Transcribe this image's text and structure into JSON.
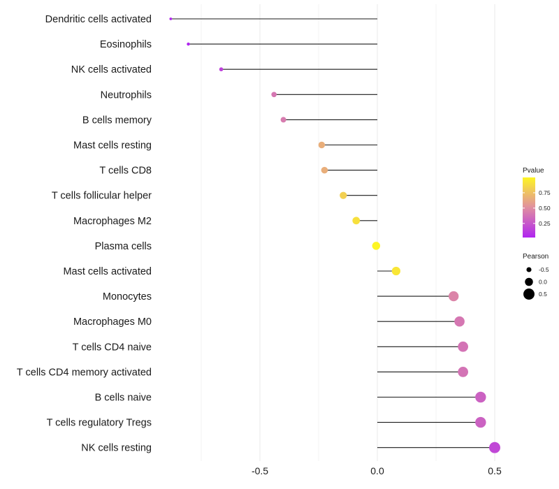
{
  "chart_data": {
    "type": "lollipop",
    "title": "",
    "xlabel": "",
    "ylabel": "",
    "xlim": [
      -0.88,
      0.52
    ],
    "x_ticks": [
      -0.5,
      0.0,
      0.5
    ],
    "x_tick_labels": [
      "-0.5",
      "0.0",
      "0.5"
    ],
    "grid": true,
    "categories": [
      "Dendritic cells activated",
      "Eosinophils",
      "NK cells activated",
      "Neutrophils",
      "B cells memory",
      "Mast cells resting",
      "T cells CD8",
      "T cells follicular helper",
      "Macrophages M2",
      "Plasma cells",
      "Mast cells activated",
      "Monocytes",
      "Macrophages M0",
      "T cells CD4 naive",
      "T cells CD4 memory activated",
      "B cells naive",
      "T cells regulatory  Tregs",
      "NK cells resting"
    ],
    "pearson": [
      -0.88,
      -0.805,
      -0.665,
      -0.44,
      -0.4,
      -0.237,
      -0.225,
      -0.145,
      -0.09,
      -0.005,
      0.08,
      0.325,
      0.35,
      0.365,
      0.365,
      0.44,
      0.44,
      0.5
    ],
    "pvalue": [
      0.03,
      0.02,
      0.15,
      0.4,
      0.42,
      0.66,
      0.66,
      0.82,
      0.9,
      1.0,
      0.93,
      0.46,
      0.4,
      0.38,
      0.38,
      0.3,
      0.3,
      0.18
    ],
    "legend_pvalue": {
      "title": "Pvalue",
      "ticks": [
        0.25,
        0.5,
        0.75
      ],
      "tick_labels": [
        "0.25",
        "0.50",
        "0.75"
      ],
      "range": [
        0.02,
        1.0
      ],
      "low_color": "#b025f0",
      "mid_color": "#e08fa0",
      "high_color": "#fdf524",
      "position": "right"
    },
    "legend_pearson": {
      "title": "Pearson",
      "values": [
        -0.5,
        0.0,
        0.5
      ],
      "labels": [
        "-0.5",
        "0.0",
        "0.5"
      ],
      "position": "right"
    },
    "stem_color": "#1a1a1a",
    "grid_color": "#ebebeb"
  }
}
